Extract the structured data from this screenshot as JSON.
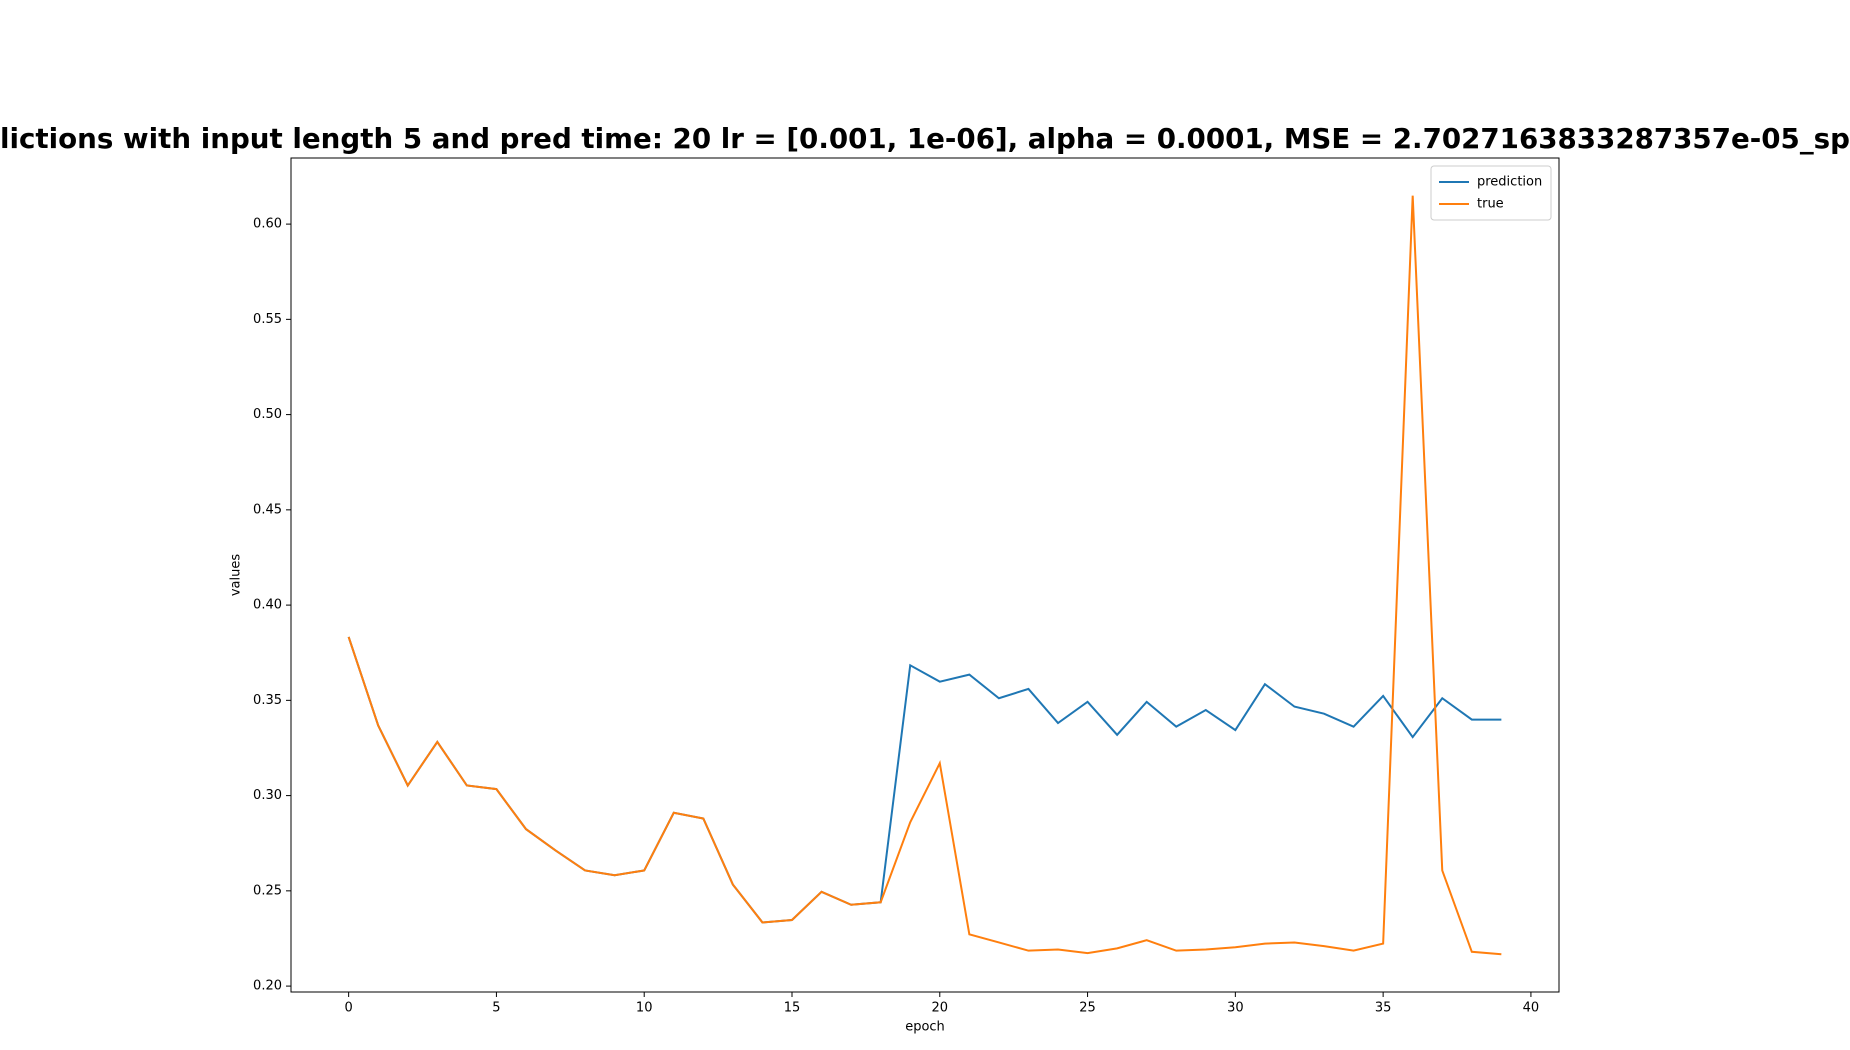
{
  "chart_data": {
    "type": "line",
    "title": "lictions with input length 5 and pred time: 20 lr = [0.001, 1e-06], alpha = 0.0001, MSE = 2.7027163833287357e-05_sp",
    "xlabel": "epoch",
    "ylabel": "values",
    "x": [
      0,
      1,
      2,
      3,
      4,
      5,
      6,
      7,
      8,
      9,
      10,
      11,
      12,
      13,
      14,
      15,
      16,
      17,
      18,
      19,
      20,
      21,
      22,
      23,
      24,
      25,
      26,
      27,
      28,
      29,
      30,
      31,
      32,
      33,
      34,
      35,
      36,
      37,
      38,
      39
    ],
    "series": [
      {
        "name": "prediction",
        "color": "#1f77b4",
        "values": [
          0.3833,
          0.3368,
          0.3053,
          0.3282,
          0.3053,
          0.3034,
          0.2824,
          0.2712,
          0.2607,
          0.2582,
          0.2607,
          0.291,
          0.288,
          0.2533,
          0.2334,
          0.2347,
          0.2495,
          0.2427,
          0.244,
          0.3684,
          0.3598,
          0.3635,
          0.3511,
          0.356,
          0.3381,
          0.3492,
          0.3319,
          0.3492,
          0.3362,
          0.3449,
          0.3344,
          0.3585,
          0.3467,
          0.343,
          0.3362,
          0.3523,
          0.3307,
          0.3511,
          0.3399,
          0.3399
        ]
      },
      {
        "name": "true",
        "color": "#ff7f0e",
        "values": [
          0.3833,
          0.3368,
          0.3053,
          0.3282,
          0.3053,
          0.3034,
          0.2824,
          0.2712,
          0.2607,
          0.2582,
          0.2607,
          0.291,
          0.288,
          0.2533,
          0.2334,
          0.2347,
          0.2495,
          0.2427,
          0.244,
          0.286,
          0.317,
          0.2272,
          0.2229,
          0.2186,
          0.2192,
          0.2173,
          0.2198,
          0.2241,
          0.2186,
          0.2192,
          0.2204,
          0.2223,
          0.2229,
          0.221,
          0.2186,
          0.2223,
          0.6149,
          0.2607,
          0.218,
          0.2167
        ]
      }
    ],
    "xlim": [
      -1.95,
      40.95
    ],
    "ylim": [
      0.1969,
      0.6347
    ],
    "xticks": [
      0,
      5,
      10,
      15,
      20,
      25,
      30,
      35,
      40
    ],
    "yticks": [
      {
        "value": 0.2,
        "label": "0.20"
      },
      0.25,
      {
        "value": 0.3,
        "label": "0.30"
      },
      0.35,
      {
        "value": 0.4,
        "label": "0.40"
      },
      0.45,
      {
        "value": 0.5,
        "label": "0.50"
      },
      0.55,
      {
        "value": 0.6,
        "label": "0.60"
      }
    ],
    "legend": "upper right",
    "grid": false
  }
}
